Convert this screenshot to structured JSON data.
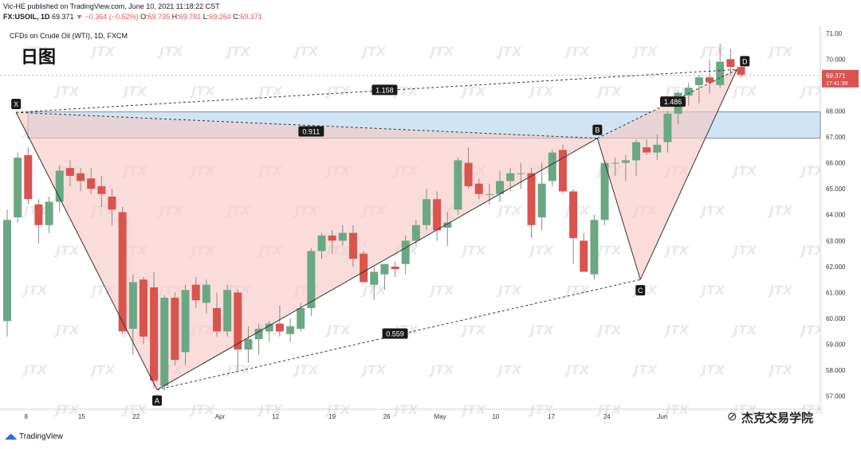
{
  "header": {
    "publisher_line": "Vic-HE published on TradingView.com, June 10, 2021 11:18:22 CST",
    "symbol": "FX:USOIL, 1D",
    "last": "69.371",
    "change": "−0.364 (−0.52%)",
    "o_label": "O:",
    "o_val": "69.735",
    "h_label": "H:",
    "h_val": "69.781",
    "l_label": "L:",
    "l_val": "69.264",
    "c_label": "C:",
    "c_val": "69.371"
  },
  "chart_title": "CFDs on Crude Oil (WTI), 1D, FXCM",
  "big_label": "日图",
  "price_tag": {
    "price": "69.371",
    "countdown": "17:41:39"
  },
  "footer": {
    "brand": "TradingView",
    "watermark": "杰克交易学院"
  },
  "watermark_logo_text": "JTX",
  "colors": {
    "up": "#6aa884",
    "down": "#d9534f",
    "line": "#333333",
    "band": "#cfe4f5",
    "triangle": "#f6c7c2"
  },
  "chart_data": {
    "type": "candlestick",
    "y_ticks": [
      "57.000",
      "58.000",
      "59.000",
      "60.000",
      "61.000",
      "62.000",
      "63.000",
      "64.000",
      "65.000",
      "66.000",
      "67.000",
      "68.000",
      "70.000",
      "71.00"
    ],
    "x_ticks": [
      "8",
      "15",
      "22",
      "Apr",
      "12",
      "19",
      "26",
      "May",
      "10",
      "17",
      "24",
      "Jun"
    ],
    "ylim": [
      56.5,
      71.3
    ],
    "candles": [
      [
        59.9,
        64.2,
        59.3,
        63.8
      ],
      [
        63.9,
        66.4,
        63.7,
        66.2
      ],
      [
        66.3,
        66.6,
        64.4,
        64.6
      ],
      [
        64.4,
        64.6,
        62.9,
        63.6
      ],
      [
        63.6,
        64.7,
        63.3,
        64.5
      ],
      [
        64.5,
        65.9,
        64.1,
        65.7
      ],
      [
        65.8,
        66.1,
        65.1,
        65.5
      ],
      [
        65.6,
        65.8,
        64.9,
        65.3
      ],
      [
        65.4,
        65.8,
        64.8,
        65.0
      ],
      [
        65.1,
        65.5,
        64.3,
        64.8
      ],
      [
        64.7,
        65.0,
        63.6,
        64.2
      ],
      [
        64.1,
        64.3,
        59.4,
        59.5
      ],
      [
        59.6,
        61.7,
        58.6,
        61.4
      ],
      [
        61.5,
        61.6,
        59.0,
        59.3
      ],
      [
        61.2,
        61.8,
        57.3,
        57.6
      ],
      [
        57.4,
        60.9,
        57.2,
        60.8
      ],
      [
        60.8,
        61.0,
        58.2,
        58.4
      ],
      [
        58.7,
        61.3,
        58.2,
        61.1
      ],
      [
        61.3,
        61.6,
        60.4,
        60.7
      ],
      [
        60.6,
        61.5,
        60.2,
        61.3
      ],
      [
        60.4,
        61.0,
        59.3,
        59.5
      ],
      [
        59.5,
        61.3,
        59.3,
        61.1
      ],
      [
        61.0,
        61.1,
        58.0,
        58.8
      ],
      [
        58.8,
        59.7,
        58.3,
        59.2
      ],
      [
        59.2,
        59.8,
        58.6,
        59.6
      ],
      [
        59.5,
        59.9,
        59.1,
        59.8
      ],
      [
        59.8,
        60.5,
        59.3,
        59.5
      ],
      [
        59.4,
        60.0,
        59.1,
        59.7
      ],
      [
        59.6,
        60.6,
        59.5,
        60.4
      ],
      [
        60.4,
        62.7,
        60.1,
        62.6
      ],
      [
        62.6,
        63.3,
        62.3,
        63.2
      ],
      [
        63.2,
        63.4,
        62.5,
        63.0
      ],
      [
        63.0,
        63.6,
        62.8,
        63.3
      ],
      [
        63.3,
        63.6,
        62.0,
        62.3
      ],
      [
        62.5,
        62.6,
        61.4,
        61.4
      ],
      [
        61.3,
        62.0,
        60.7,
        61.8
      ],
      [
        61.7,
        62.1,
        61.1,
        62.1
      ],
      [
        62.0,
        62.2,
        61.6,
        61.9
      ],
      [
        62.1,
        63.2,
        61.7,
        63.0
      ],
      [
        63.0,
        63.8,
        62.8,
        63.6
      ],
      [
        63.6,
        65.0,
        63.4,
        64.6
      ],
      [
        64.6,
        64.9,
        63.0,
        63.4
      ],
      [
        63.5,
        64.1,
        62.8,
        63.7
      ],
      [
        64.2,
        66.2,
        64.0,
        66.1
      ],
      [
        66.0,
        66.6,
        65.0,
        65.1
      ],
      [
        65.2,
        65.4,
        64.6,
        64.8
      ],
      [
        64.8,
        65.2,
        64.4,
        64.8
      ],
      [
        64.8,
        65.7,
        64.5,
        65.3
      ],
      [
        65.3,
        65.8,
        64.9,
        65.6
      ],
      [
        65.6,
        66.0,
        65.0,
        65.6
      ],
      [
        65.6,
        65.8,
        63.1,
        63.6
      ],
      [
        63.9,
        66.0,
        63.4,
        65.2
      ],
      [
        65.3,
        66.5,
        65.1,
        66.4
      ],
      [
        66.5,
        66.7,
        64.8,
        64.9
      ],
      [
        64.9,
        65.0,
        62.1,
        63.1
      ],
      [
        63.0,
        63.3,
        61.8,
        61.8
      ],
      [
        61.7,
        64.0,
        61.5,
        63.8
      ],
      [
        63.8,
        66.1,
        63.6,
        66.0
      ],
      [
        66.0,
        66.2,
        65.5,
        66.0
      ],
      [
        66.0,
        66.3,
        65.3,
        66.1
      ],
      [
        66.1,
        66.9,
        65.5,
        66.8
      ],
      [
        66.6,
        66.9,
        66.3,
        66.4
      ],
      [
        66.4,
        67.1,
        66.1,
        66.7
      ],
      [
        66.8,
        68.0,
        66.4,
        67.9
      ],
      [
        67.9,
        68.8,
        67.5,
        68.7
      ],
      [
        68.6,
        69.1,
        68.2,
        68.9
      ],
      [
        69.0,
        69.4,
        68.3,
        69.3
      ],
      [
        69.3,
        70.0,
        68.7,
        69.1
      ],
      [
        69.0,
        70.6,
        68.9,
        69.9
      ],
      [
        70.0,
        70.4,
        69.4,
        69.7
      ],
      [
        69.7,
        69.8,
        69.3,
        69.4
      ]
    ],
    "bands": [
      {
        "from": 66.95,
        "to": 67.97
      }
    ],
    "pattern_points": [
      {
        "label": "X",
        "i": 0.85,
        "price": 67.95
      },
      {
        "label": "A",
        "i": 14.3,
        "price": 57.25
      },
      {
        "label": "B",
        "i": 56.3,
        "price": 66.95
      },
      {
        "label": "C",
        "i": 60.4,
        "price": 61.5
      },
      {
        "label": "D",
        "i": 69.6,
        "price": 69.6
      }
    ],
    "ratios": [
      {
        "value": "1.158",
        "i": 36.0,
        "price": 68.8
      },
      {
        "value": "0.911",
        "i": 29.0,
        "price": 67.2
      },
      {
        "value": "1.486",
        "i": 63.5,
        "price": 68.35
      },
      {
        "value": "0.559",
        "i": 37.0,
        "price": 59.4
      }
    ]
  }
}
